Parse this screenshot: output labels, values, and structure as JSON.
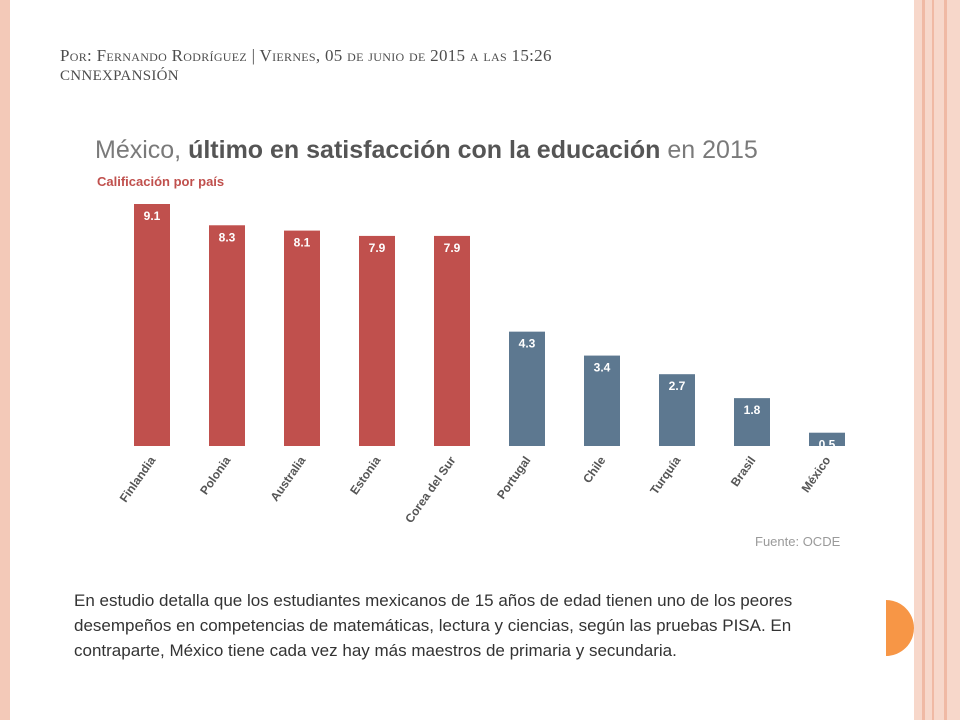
{
  "header": {
    "byline": "Por: Fernando Rodríguez | Viernes, 05 de junio de 2015 a las 15:26",
    "source_outlet": "CNNEXPANSIÓN"
  },
  "chart_data": {
    "type": "bar",
    "title_prefix": "México, ",
    "title_bold": "último en satisfacción con la educación",
    "title_suffix": " en 2015",
    "subtitle": "Calificación por país",
    "categories": [
      "Finlandia",
      "Polonia",
      "Australia",
      "Estonia",
      "Corea del Sur",
      "Portugal",
      "Chile",
      "Turquía",
      "Brasil",
      "México"
    ],
    "values": [
      9.1,
      8.3,
      8.1,
      7.9,
      7.9,
      4.3,
      3.4,
      2.7,
      1.8,
      0.5
    ],
    "value_labels": [
      "9.1",
      "8.3",
      "8.1",
      "7.9",
      "7.9",
      "4.3",
      "3.4",
      "2.7",
      "1.8",
      "0.5"
    ],
    "colors": [
      "#c0504d",
      "#c0504d",
      "#c0504d",
      "#c0504d",
      "#c0504d",
      "#5d7890",
      "#5d7890",
      "#5d7890",
      "#5d7890",
      "#5d7890"
    ],
    "ylim": [
      0,
      9.1
    ],
    "grid": false,
    "source": "Fuente: OCDE"
  },
  "caption": "En estudio detalla que los estudiantes mexicanos de 15 años de edad tienen uno de los peores desempeños en competencias de matemáticas, lectura y ciencias, según las pruebas PISA. En contraparte, México tiene cada vez hay más maestros de primaria y secundaria."
}
